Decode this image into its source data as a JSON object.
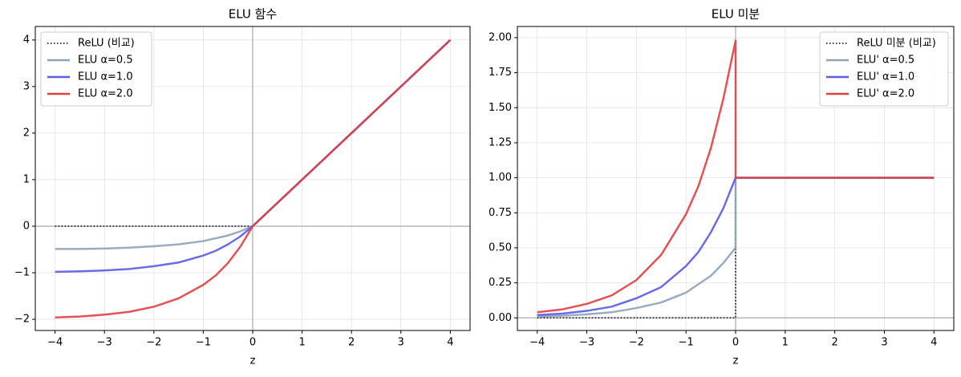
{
  "chart_data": [
    {
      "type": "line",
      "title": "ELU 함수",
      "xlabel": "z",
      "legend": "upper left",
      "grid": true,
      "x": [
        -4,
        -3.5,
        -3,
        -2.5,
        -2,
        -1.5,
        -1,
        -0.75,
        -0.5,
        -0.25,
        0,
        1,
        2,
        3,
        4
      ],
      "series": [
        {
          "name": "ReLU (비교)",
          "color": "#000000",
          "linestyle": "dotted",
          "values": [
            0,
            0,
            0,
            0,
            0,
            0,
            0,
            0,
            0,
            0,
            0,
            1,
            2,
            3,
            4
          ]
        },
        {
          "name": "ELU α=0.5",
          "color": "#8fa3b8",
          "linestyle": "solid",
          "values": [
            -0.49,
            -0.49,
            -0.48,
            -0.46,
            -0.43,
            -0.39,
            -0.32,
            -0.26,
            -0.2,
            -0.11,
            0,
            1,
            2,
            3,
            4
          ]
        },
        {
          "name": "ELU α=1.0",
          "color": "#5b5be6",
          "linestyle": "solid",
          "values": [
            -0.98,
            -0.97,
            -0.95,
            -0.92,
            -0.86,
            -0.78,
            -0.63,
            -0.53,
            -0.39,
            -0.22,
            0,
            1,
            2,
            3,
            4
          ]
        },
        {
          "name": "ELU α=2.0",
          "color": "#e04044",
          "linestyle": "solid",
          "values": [
            -1.96,
            -1.94,
            -1.9,
            -1.84,
            -1.73,
            -1.55,
            -1.26,
            -1.06,
            -0.79,
            -0.44,
            0,
            1,
            2,
            3,
            4
          ]
        }
      ],
      "xlim": [
        -4.4,
        4.4
      ],
      "ylim": [
        -2.24,
        4.29
      ],
      "xticks": [
        {
          "value": -4,
          "label": "−4"
        },
        {
          "value": -3,
          "label": "−3"
        },
        {
          "value": -2,
          "label": "−2"
        },
        {
          "value": -1,
          "label": "−1"
        },
        0,
        1,
        2,
        3,
        4
      ],
      "yticks": [
        {
          "value": -2,
          "label": "−2"
        },
        {
          "value": -1,
          "label": "−1"
        },
        0,
        1,
        2,
        3,
        4
      ]
    },
    {
      "type": "line",
      "title": "ELU 미분",
      "xlabel": "z",
      "legend": "upper right",
      "grid": true,
      "x": [
        -4,
        -3.5,
        -3,
        -2.5,
        -2,
        -1.5,
        -1,
        -0.75,
        -0.5,
        -0.25,
        0,
        0,
        1,
        2,
        3,
        4
      ],
      "series": [
        {
          "name": "ReLU 미분 (비교)",
          "color": "#000000",
          "linestyle": "dotted",
          "values": [
            0,
            0,
            0,
            0,
            0,
            0,
            0,
            0,
            0,
            0,
            0,
            1,
            1,
            1,
            1,
            1
          ]
        },
        {
          "name": "ELU' α=0.5",
          "color": "#8fa3b8",
          "linestyle": "solid",
          "values": [
            0.01,
            0.015,
            0.025,
            0.04,
            0.07,
            0.11,
            0.18,
            0.24,
            0.3,
            0.39,
            0.5,
            1,
            1,
            1,
            1,
            1
          ]
        },
        {
          "name": "ELU' α=1.0",
          "color": "#5b5be6",
          "linestyle": "solid",
          "values": [
            0.02,
            0.03,
            0.05,
            0.08,
            0.14,
            0.22,
            0.37,
            0.47,
            0.61,
            0.78,
            1,
            1,
            1,
            1,
            1,
            1
          ]
        },
        {
          "name": "ELU' α=2.0",
          "color": "#e04044",
          "linestyle": "solid",
          "values": [
            0.04,
            0.06,
            0.1,
            0.16,
            0.27,
            0.45,
            0.74,
            0.94,
            1.21,
            1.56,
            1.98,
            1,
            1,
            1,
            1,
            1
          ]
        }
      ],
      "xlim": [
        -4.4,
        4.4
      ],
      "ylim": [
        -0.09,
        2.08
      ],
      "xticks": [
        {
          "value": -4,
          "label": "−4"
        },
        {
          "value": -3,
          "label": "−3"
        },
        {
          "value": -2,
          "label": "−2"
        },
        {
          "value": -1,
          "label": "−1"
        },
        0,
        1,
        2,
        3,
        4
      ],
      "yticks": [
        {
          "value": 0,
          "label": "0.00"
        },
        {
          "value": 0.25,
          "label": "0.25"
        },
        {
          "value": 0.5,
          "label": "0.50"
        },
        {
          "value": 0.75,
          "label": "0.75"
        },
        {
          "value": 1,
          "label": "1.00"
        },
        {
          "value": 1.25,
          "label": "1.25"
        },
        {
          "value": 1.5,
          "label": "1.50"
        },
        {
          "value": 1.75,
          "label": "1.75"
        },
        {
          "value": 2,
          "label": "2.00"
        }
      ]
    }
  ]
}
